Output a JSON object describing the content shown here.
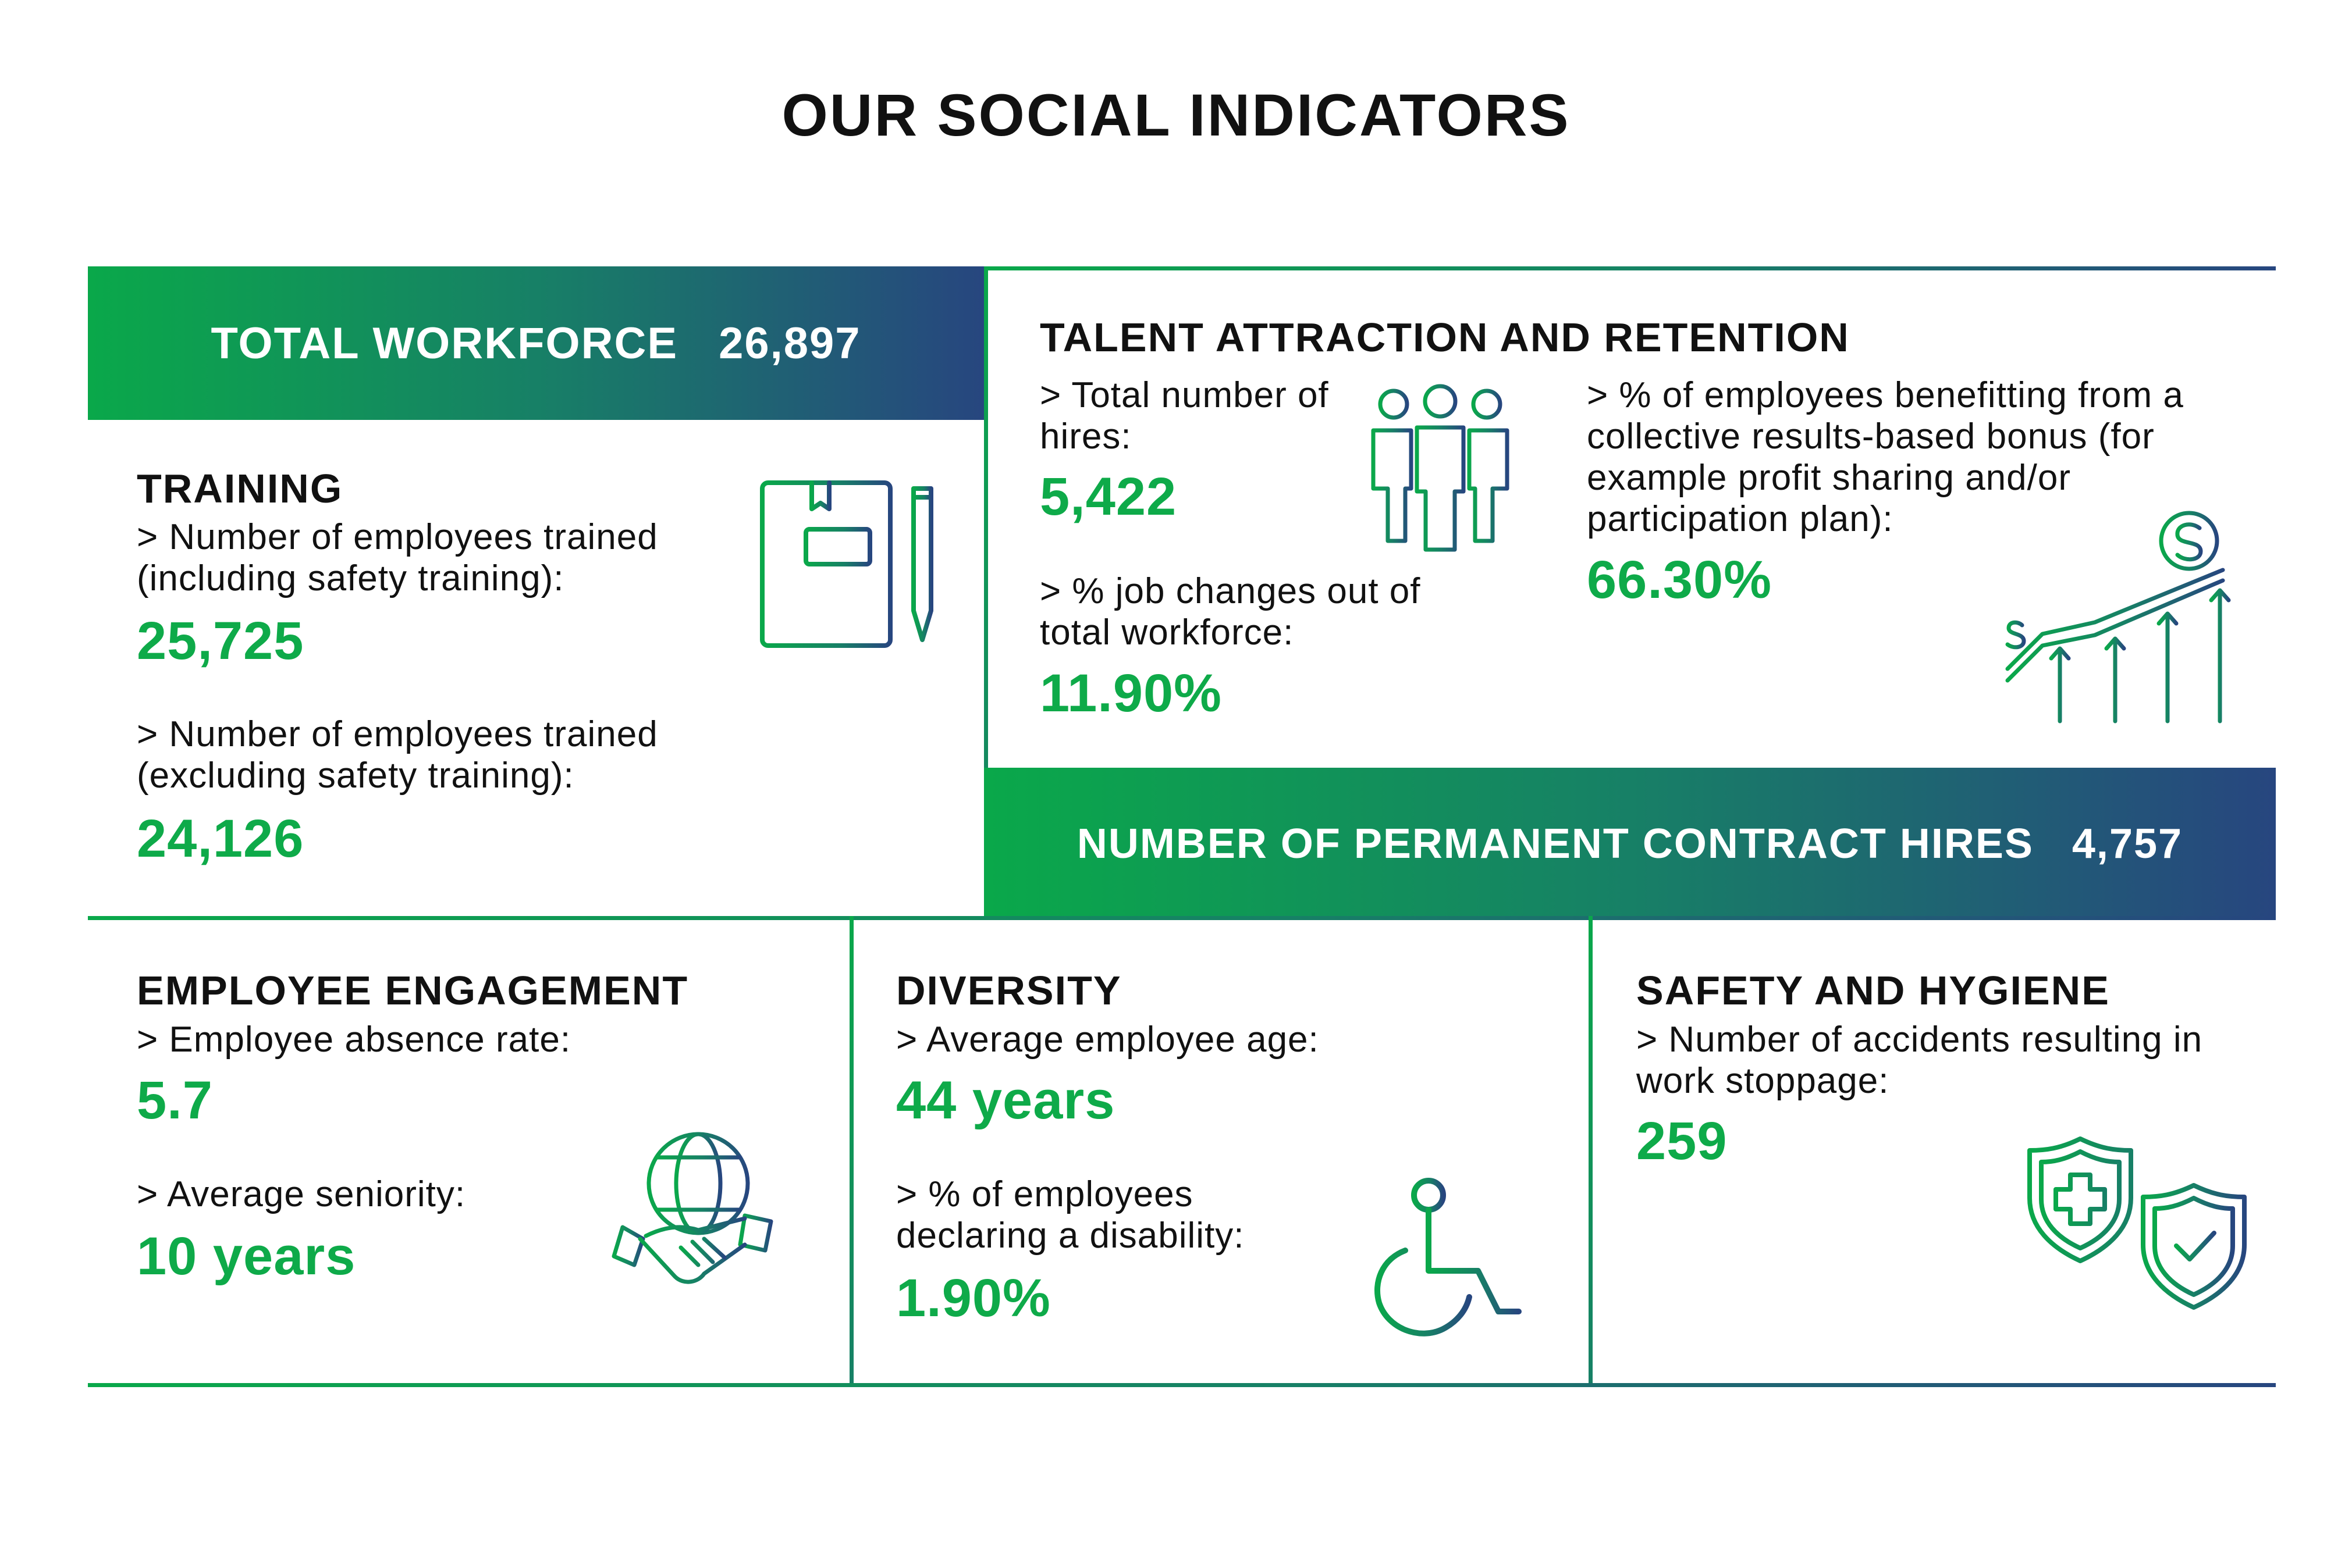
{
  "title": "OUR SOCIAL INDICATORS",
  "total_workforce": {
    "label": "TOTAL WORKFORCE",
    "value": "26,897"
  },
  "training": {
    "heading": "TRAINING",
    "trained_incl_label": "> Number of employees trained (including safety training):",
    "trained_incl_value": "25,725",
    "trained_excl_label": "> Number of employees trained (excluding safety training):",
    "trained_excl_value": "24,126",
    "icon": "notebook-pen-icon"
  },
  "talent": {
    "heading": "TALENT ATTRACTION AND RETENTION",
    "hires_label": "> Total number of hires:",
    "hires_value": "5,422",
    "job_changes_label": "> % job changes out of total workforce:",
    "job_changes_value": "11.90%",
    "bonus_label": "> % of employees benefitting from a collective results-based bonus (for example profit sharing and/or participation plan):",
    "bonus_value": "66.30%",
    "icons": [
      "people-group-icon",
      "growth-chart-dollar-icon"
    ]
  },
  "permanent_hires": {
    "label": "NUMBER OF PERMANENT CONTRACT HIRES",
    "value": "4,757"
  },
  "engagement": {
    "heading": "EMPLOYEE ENGAGEMENT",
    "absence_label": "> Employee absence rate:",
    "absence_value": "5.7",
    "seniority_label": "> Average seniority:",
    "seniority_value": "10 years",
    "icon": "globe-handshake-icon"
  },
  "diversity": {
    "heading": "DIVERSITY",
    "age_label": "> Average employee age:",
    "age_value": "44 years",
    "disability_label": "> % of employees declaring a disability:",
    "disability_value": "1.90%",
    "icon": "wheelchair-icon"
  },
  "safety": {
    "heading": "SAFETY AND HYGIENE",
    "accidents_label": "> Number of accidents resulting in work stoppage:",
    "accidents_value": "259",
    "icons": [
      "shield-cross-icon",
      "shield-check-icon"
    ]
  },
  "colors": {
    "green": "#0eaa49",
    "teal": "#178066",
    "navy": "#27467f",
    "text": "#111111"
  }
}
